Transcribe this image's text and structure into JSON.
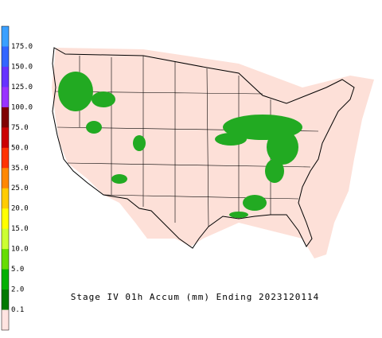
{
  "title": "Stage IV 01h Accum (mm) Ending 2023120114",
  "legend": {
    "labels": [
      "175.0",
      "150.0",
      "125.0",
      "100.0",
      "75.0",
      "50.0",
      "35.0",
      "25.0",
      "20.0",
      "15.0",
      "10.0",
      "5.0",
      "2.0",
      "0.1"
    ],
    "colors": [
      "#3aa0ff",
      "#3366ff",
      "#6633ff",
      "#9933ff",
      "#800000",
      "#cc0000",
      "#ff3300",
      "#ff8800",
      "#ffcc00",
      "#ffff00",
      "#ccff33",
      "#66dd00",
      "#00b000",
      "#007a00",
      "#ffe4e1"
    ]
  }
}
